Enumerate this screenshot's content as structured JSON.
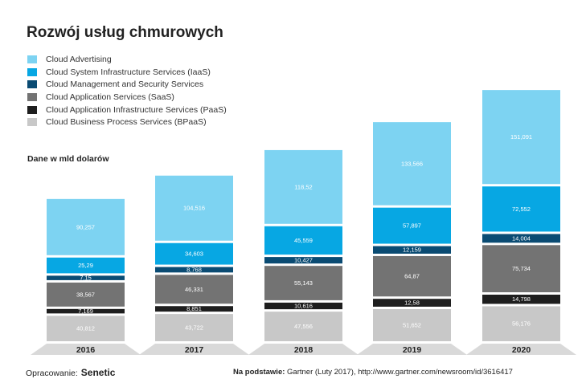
{
  "chart_data": {
    "type": "bar",
    "stacked": true,
    "title": "Rozwój usług chmurowych",
    "unit_label": "Dane w mld dolarów",
    "categories": [
      "2016",
      "2017",
      "2018",
      "2019",
      "2020"
    ],
    "series": [
      {
        "name": "Cloud Business Process Services (BPaaS)",
        "color": "#c8c8c8",
        "text_color": "#ffffff",
        "labels": [
          "40,812",
          "43,722",
          "47,556",
          "51,652",
          "56,176"
        ],
        "values": [
          40.812,
          43.722,
          47.556,
          51.652,
          56.176
        ]
      },
      {
        "name": "Cloud Application Infrastructure Services (PaaS)",
        "color": "#1e1e1e",
        "text_color": "#ffffff",
        "labels": [
          "7,169",
          "8,851",
          "10,616",
          "12,58",
          "14,798"
        ],
        "values": [
          7.169,
          8.851,
          10.616,
          12.58,
          14.798
        ]
      },
      {
        "name": "Cloud Application Services (SaaS)",
        "color": "#737373",
        "text_color": "#ffffff",
        "labels": [
          "38,567",
          "46,331",
          "55,143",
          "64,87",
          "75,734"
        ],
        "values": [
          38.567,
          46.331,
          55.143,
          64.87,
          75.734
        ]
      },
      {
        "name": "Cloud Management and Security Services",
        "color": "#0a4b73",
        "text_color": "#ffffff",
        "labels": [
          "7,15",
          "8,768",
          "10,427",
          "12,159",
          "14,004"
        ],
        "values": [
          7.15,
          8.768,
          10.427,
          12.159,
          14.004
        ]
      },
      {
        "name": "Cloud System Infrastructure Services (IaaS)",
        "color": "#07a7e3",
        "text_color": "#ffffff",
        "labels": [
          "25,29",
          "34,603",
          "45,559",
          "57,897",
          "72,552"
        ],
        "values": [
          25.29,
          34.603,
          45.559,
          57.897,
          72.552
        ]
      },
      {
        "name": "Cloud Advertising",
        "color": "#7dd3f2",
        "text_color": "#ffffff",
        "labels": [
          "90,257",
          "104,516",
          "118,52",
          "133,566",
          "151,091"
        ],
        "values": [
          90.257,
          104.516,
          118.52,
          133.566,
          151.091
        ]
      }
    ],
    "legend_order": [
      5,
      4,
      3,
      2,
      1,
      0
    ],
    "legend_position": "top-left",
    "grid": false
  },
  "footer": {
    "prepared_label": "Opracowanie:",
    "brand": "Senetic",
    "source_label": "Na podstawie:",
    "source_text": "Gartner (Luty 2017), http://www.gartner.com/newsroom/id/3616417"
  }
}
